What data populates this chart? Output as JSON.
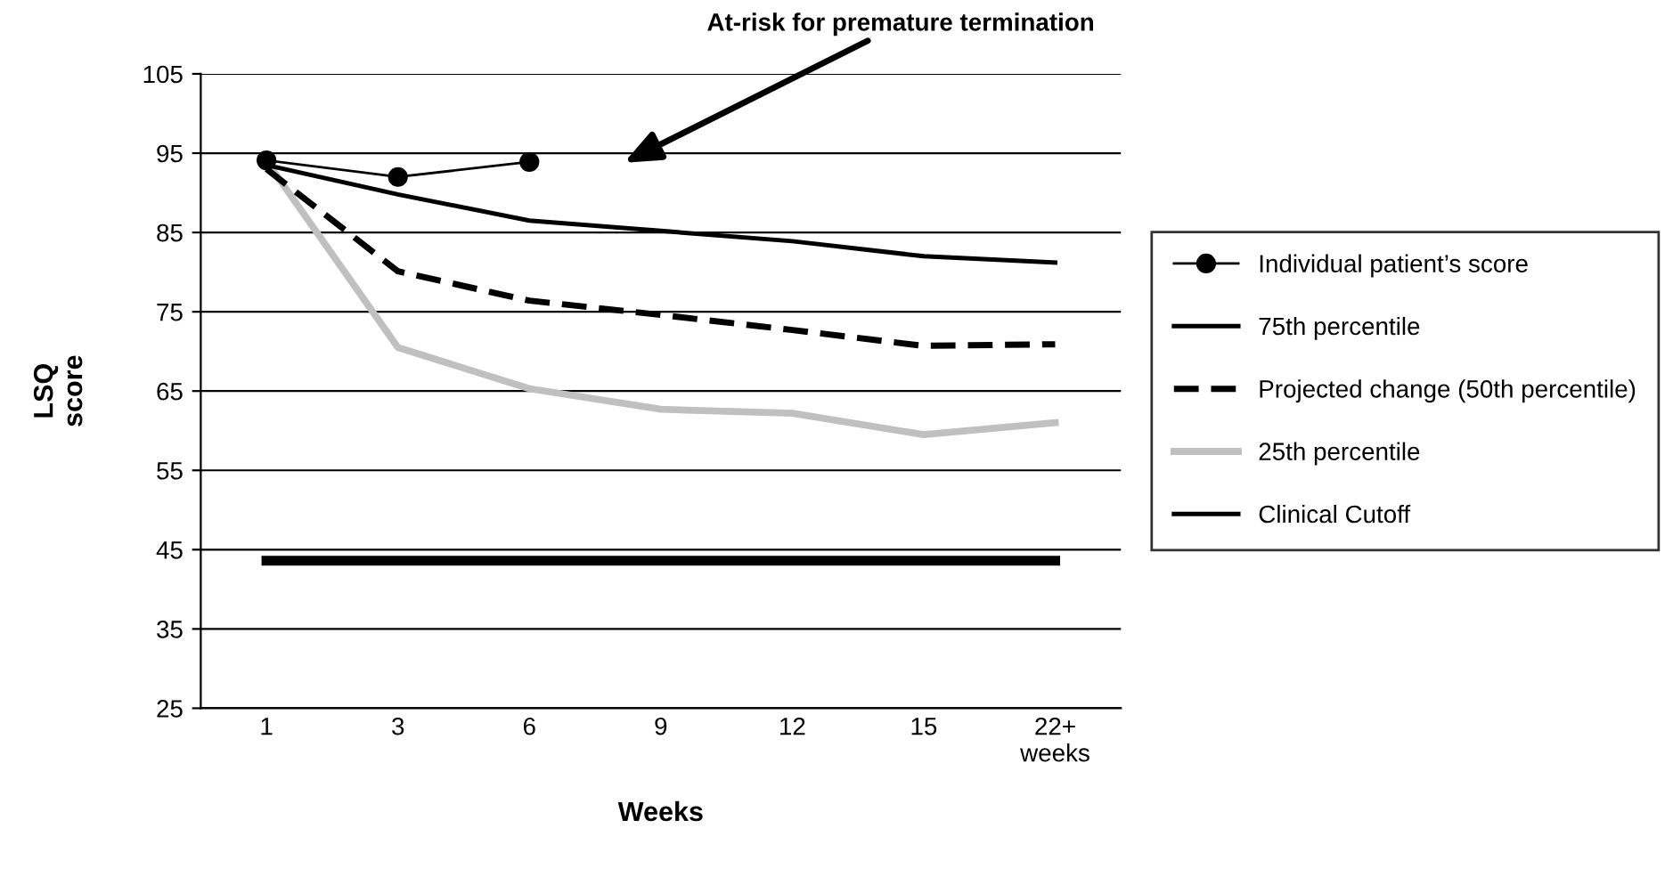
{
  "chart_data": {
    "type": "line",
    "xlabel": "Weeks",
    "ylabel": "LSQ\nscore",
    "categories": [
      "1",
      "3",
      "6",
      "9",
      "12",
      "15",
      "22+\nweeks"
    ],
    "series": [
      {
        "name": "Individual patient’s score",
        "color": "#000000",
        "marker": "circle",
        "line_style": "solid",
        "values": [
          94.1,
          92.0,
          93.9,
          null,
          null,
          null,
          null
        ]
      },
      {
        "name": "75th percentile",
        "color": "#000000",
        "line_style": "solid",
        "values": [
          93.5,
          89.8,
          86.5,
          85.2,
          83.9,
          82.0,
          81.2
        ]
      },
      {
        "name": "Projected change (50th percentile)",
        "color": "#000000",
        "line_style": "dashed",
        "values": [
          93.0,
          80.1,
          76.4,
          74.6,
          72.7,
          70.7,
          70.9
        ]
      },
      {
        "name": "25th percentile",
        "color": "#c0c0c0",
        "line_style": "solid",
        "values": [
          94.0,
          70.5,
          65.3,
          62.7,
          62.2,
          59.5,
          61.0
        ]
      },
      {
        "name": "Clinical Cutoff",
        "color": "#000000",
        "line_style": "solid",
        "values": [
          43.6,
          43.6,
          43.6,
          43.6,
          43.6,
          43.6,
          43.6
        ]
      }
    ],
    "ylim": [
      25,
      105
    ],
    "yticks": [
      25,
      35,
      45,
      55,
      65,
      75,
      85,
      95,
      105
    ],
    "grid": "y",
    "legend": "right",
    "annotations": [
      "At-risk for premature termination"
    ]
  }
}
